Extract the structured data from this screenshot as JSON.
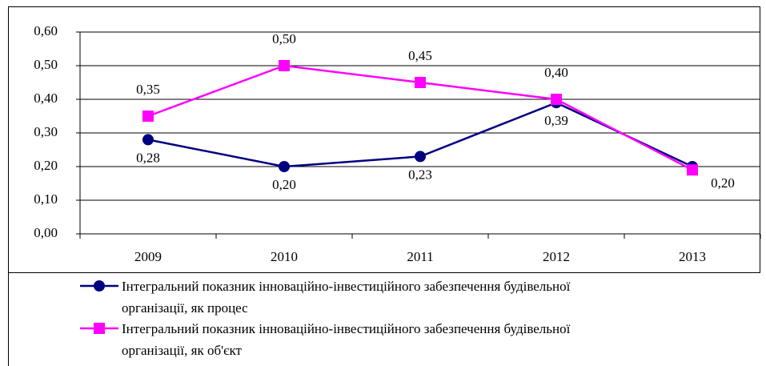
{
  "chart_data": {
    "type": "line",
    "categories": [
      "2009",
      "2010",
      "2011",
      "2012",
      "2013"
    ],
    "series": [
      {
        "name": "Інтегральний показник інноваційно-інвестиційного забезпечення будівельної організації, як процес",
        "color": "#000080",
        "marker": "circle",
        "values": [
          0.28,
          0.2,
          0.23,
          0.39,
          0.2
        ],
        "value_labels": [
          "0,28",
          "0,20",
          "0,23",
          "0,39",
          "0,20"
        ]
      },
      {
        "name": "Інтегральний показник інноваційно-інвестиційного забезпечення будівельної організації, як об'єкт",
        "color": "#ff00ff",
        "marker": "square",
        "values": [
          0.35,
          0.5,
          0.45,
          0.4,
          0.19
        ],
        "value_labels": [
          "0,35",
          "0,50",
          "0,45",
          "0,40",
          null
        ]
      }
    ],
    "ylim": [
      0,
      0.6
    ],
    "yticks": [
      {
        "value": 0,
        "label": "0,00"
      },
      {
        "value": 0.1,
        "label": "0,10"
      },
      {
        "value": 0.2,
        "label": "0,20"
      },
      {
        "value": 0.3,
        "label": "0,30"
      },
      {
        "value": 0.4,
        "label": "0,40"
      },
      {
        "value": 0.5,
        "label": "0,50"
      },
      {
        "value": 0.6,
        "label": "0,60"
      }
    ],
    "grid": true,
    "legend": "bottom"
  }
}
